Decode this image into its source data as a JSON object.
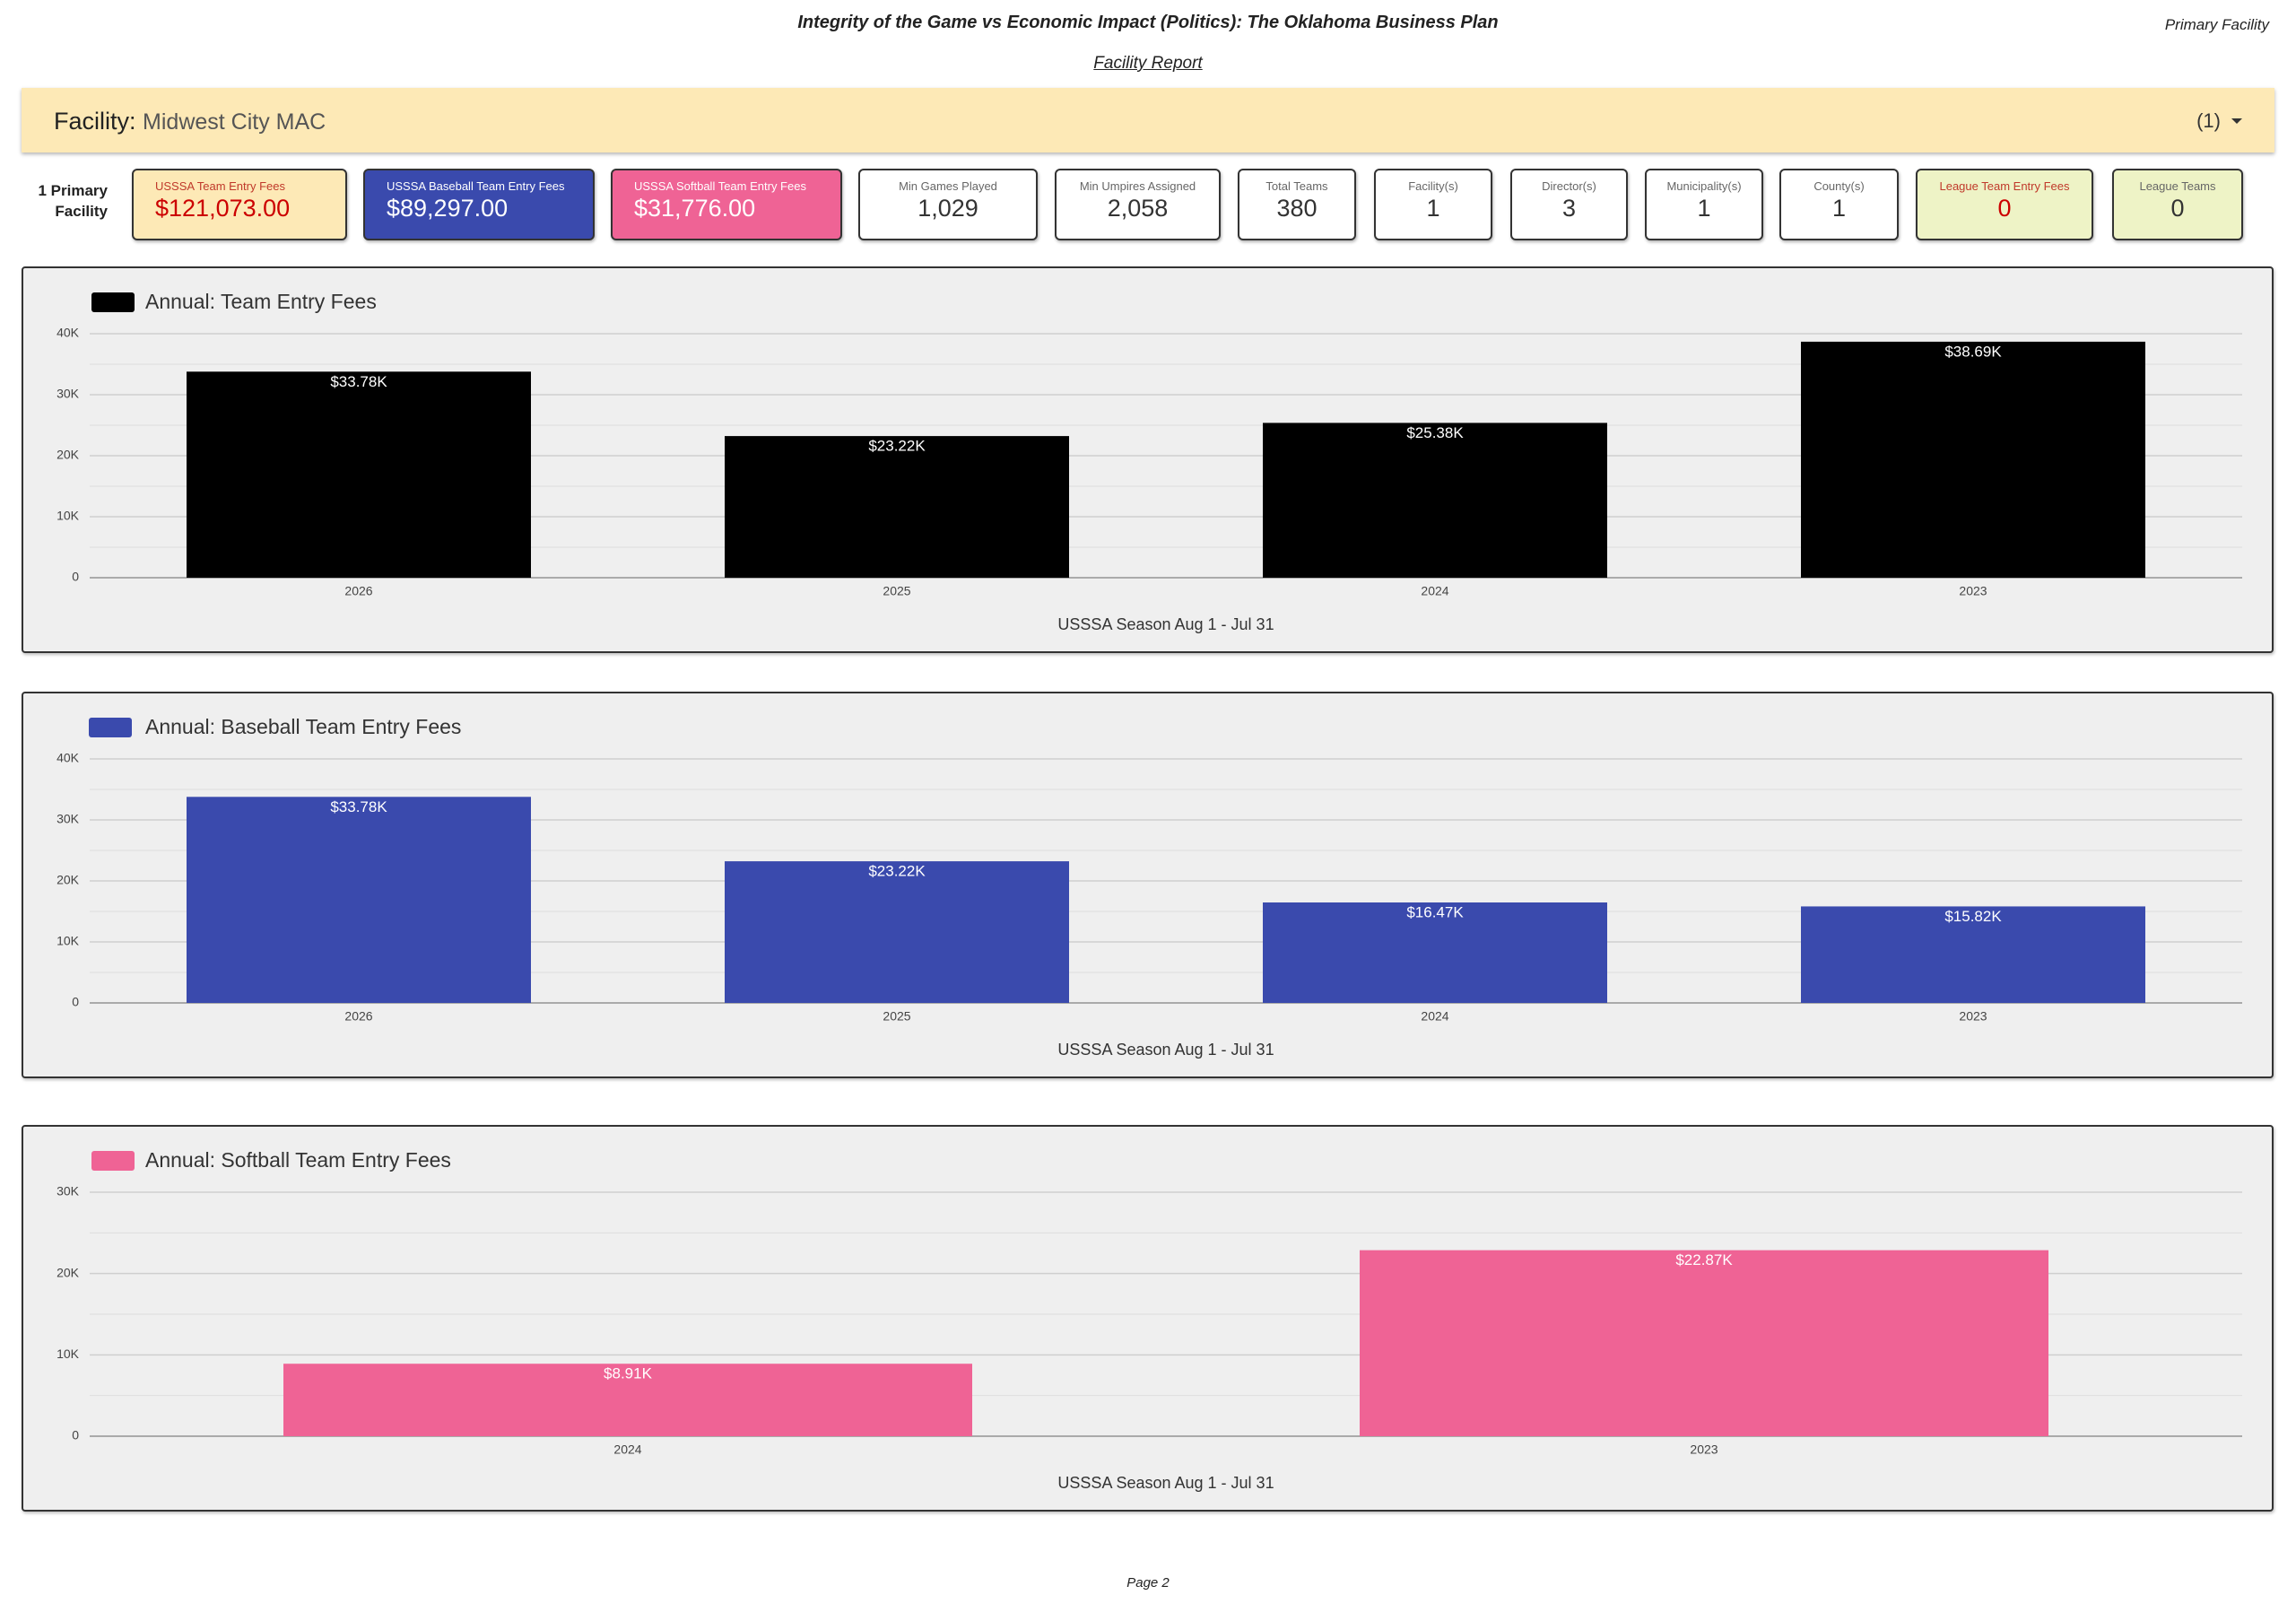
{
  "header": {
    "title": "Integrity of the Game vs Economic Impact (Politics): The Oklahoma Business Plan",
    "subtitle": "Facility Report",
    "corner": "Primary Facility"
  },
  "facility": {
    "label": "Facility",
    "separator": ":",
    "name": "Midwest City MAC",
    "count": "(1)"
  },
  "summary": {
    "line1": "1 Primary",
    "line2": "Facility"
  },
  "cards": [
    {
      "label": "USSSA Team Entry Fees",
      "value": "$121,073.00"
    },
    {
      "label": "USSSA Baseball Team Entry Fees",
      "value": "$89,297.00"
    },
    {
      "label": "USSSA Softball Team Entry Fees",
      "value": "$31,776.00"
    },
    {
      "label": "Min Games Played",
      "value": "1,029"
    },
    {
      "label": "Min Umpires Assigned",
      "value": "2,058"
    },
    {
      "label": "Total Teams",
      "value": "380"
    },
    {
      "label": "Facility(s)",
      "value": "1"
    },
    {
      "label": "Director(s)",
      "value": "3"
    },
    {
      "label": "Municipality(s)",
      "value": "1"
    },
    {
      "label": "County(s)",
      "value": "1"
    },
    {
      "label": "League Team Entry Fees",
      "value": "0"
    },
    {
      "label": "League Teams",
      "value": "0"
    }
  ],
  "chart_data": [
    {
      "type": "bar",
      "categories": [
        "2026",
        "2025",
        "2024",
        "2023"
      ],
      "x_label": "USSSA Season Aug 1 - Jul 31",
      "grid": true,
      "ylim": [
        0,
        40000
      ],
      "yticks": [
        0,
        {
          "value": 10000,
          "label": "10K"
        },
        {
          "value": 20000,
          "label": "20K"
        },
        {
          "value": 30000,
          "label": "30K"
        },
        {
          "value": 40000,
          "label": "40K"
        }
      ],
      "series": [
        {
          "name": "Annual: Team Entry Fees",
          "color": "#000000",
          "values": [
            33780,
            23220,
            25380,
            38690
          ],
          "value_labels": [
            "$33.78K",
            "$23.22K",
            "$25.38K",
            "$38.69K"
          ]
        }
      ]
    },
    {
      "type": "bar",
      "categories": [
        "2026",
        "2025",
        "2024",
        "2023"
      ],
      "x_label": "USSSA Season Aug 1 - Jul 31",
      "grid": true,
      "ylim": [
        0,
        40000
      ],
      "yticks": [
        0,
        {
          "value": 10000,
          "label": "10K"
        },
        {
          "value": 20000,
          "label": "20K"
        },
        {
          "value": 30000,
          "label": "30K"
        },
        {
          "value": 40000,
          "label": "40K"
        }
      ],
      "series": [
        {
          "name": "Annual: Baseball Team Entry Fees",
          "color": "#3a4aad",
          "values": [
            33780,
            23220,
            16470,
            15820
          ],
          "value_labels": [
            "$33.78K",
            "$23.22K",
            "$16.47K",
            "$15.82K"
          ]
        }
      ]
    },
    {
      "type": "bar",
      "categories": [
        "2024",
        "2023"
      ],
      "x_label": "USSSA Season Aug 1 - Jul 31",
      "grid": true,
      "ylim": [
        0,
        30000
      ],
      "yticks": [
        0,
        {
          "value": 10000,
          "label": "10K"
        },
        {
          "value": 20000,
          "label": "20K"
        },
        {
          "value": 30000,
          "label": "30K"
        }
      ],
      "series": [
        {
          "name": "Annual: Softball Team Entry Fees",
          "color": "#ef6395",
          "values": [
            8910,
            22870
          ],
          "value_labels": [
            "$8.91K",
            "$22.87K"
          ]
        }
      ]
    }
  ],
  "footer": "Page 2"
}
